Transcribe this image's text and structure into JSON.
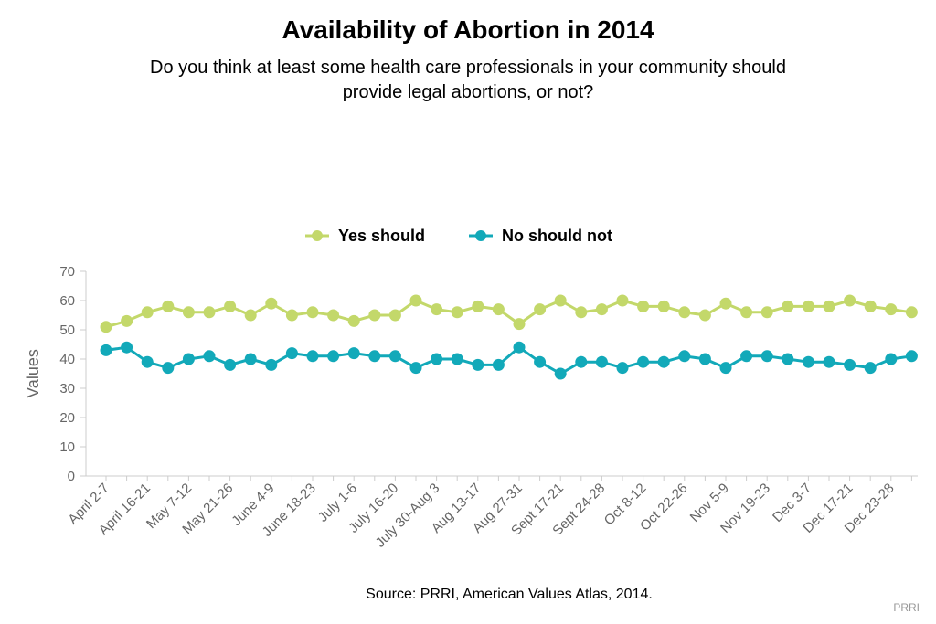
{
  "chart_data": {
    "type": "line",
    "title": "Availability of Abortion in 2014",
    "subtitle_lines": [
      "Do you think at least some health care professionals in your community should",
      "provide legal abortions, or not?"
    ],
    "ylabel": "Values",
    "ylim": [
      0,
      70
    ],
    "yticks": [
      0,
      10,
      20,
      30,
      40,
      50,
      60,
      70
    ],
    "grid": false,
    "legend_position": "top-center",
    "x_tick_labels": [
      "April 2-7",
      "April 16-21",
      "May 7-12",
      "May 21-26",
      "June 4-9",
      "June 18-23",
      "July 1-6",
      "July 16-20",
      "July 30-Aug 3",
      "Aug 13-17",
      "Aug 27-31",
      "Sept 17-21",
      "Sept 24-28",
      "Oct 8-12",
      "Oct 22-26",
      "Nov 5-9",
      "Nov 19-23",
      "Dec 3-7",
      "Dec 17-21",
      "Dec 23-28"
    ],
    "series": [
      {
        "name": "Yes should",
        "color": "#c3d86a",
        "values": [
          51,
          53,
          56,
          58,
          56,
          56,
          58,
          55,
          59,
          55,
          56,
          55,
          53,
          55,
          55,
          60,
          57,
          56,
          58,
          57,
          52,
          57,
          60,
          56,
          57,
          60,
          58,
          58,
          56,
          55,
          59,
          56,
          56,
          58,
          58,
          58,
          60,
          58,
          57,
          56
        ]
      },
      {
        "name": "No should not",
        "color": "#12a9b9",
        "values": [
          43,
          44,
          39,
          37,
          40,
          41,
          38,
          40,
          38,
          42,
          41,
          41,
          42,
          41,
          41,
          37,
          40,
          40,
          38,
          38,
          44,
          39,
          35,
          39,
          39,
          37,
          39,
          39,
          41,
          40,
          37,
          41,
          41,
          40,
          39,
          39,
          38,
          37,
          40,
          41
        ]
      }
    ],
    "source": "Source: PRRI, American Values Atlas, 2014.",
    "credit": "PRRI"
  }
}
